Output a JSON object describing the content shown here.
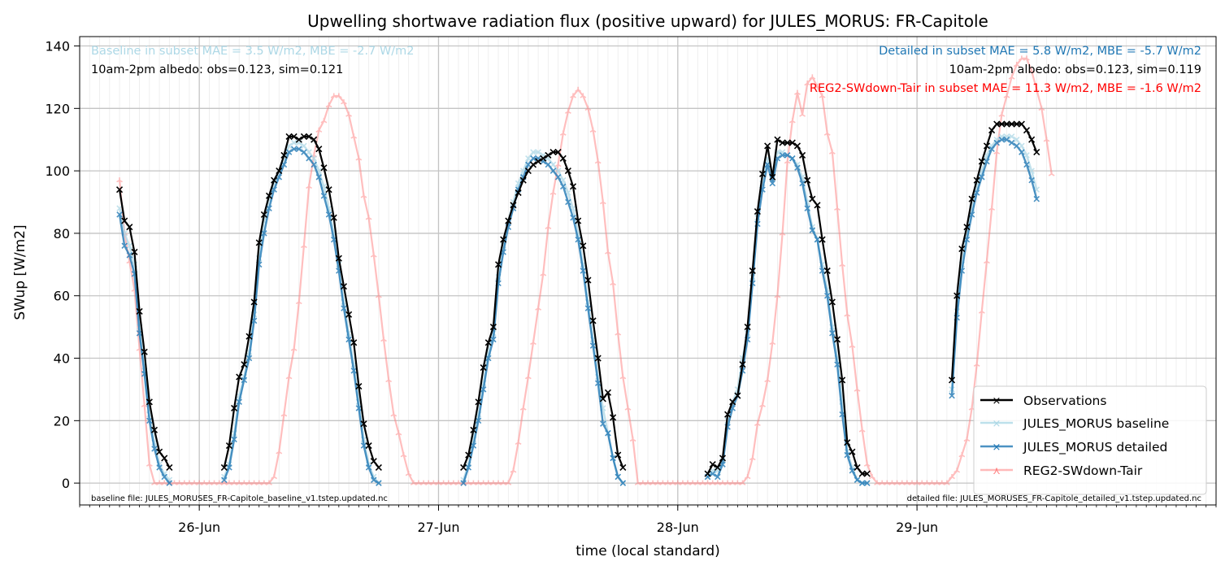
{
  "chart_data": {
    "type": "line",
    "title": "Upwelling shortwave radiation flux (positive upward) for JULES_MORUS: FR-Capitole",
    "xlabel": "time (local standard)",
    "ylabel": "SWup [W/m2]",
    "x_unit": "hours",
    "xlim": [
      -12,
      102
    ],
    "ylim": [
      -7,
      143
    ],
    "yticks": [
      0,
      20,
      40,
      60,
      80,
      100,
      120,
      140
    ],
    "xticks": [
      {
        "t": 0,
        "label": "26-Jun"
      },
      {
        "t": 24,
        "label": "27-Jun"
      },
      {
        "t": 48,
        "label": "28-Jun"
      },
      {
        "t": 72,
        "label": "29-Jun"
      }
    ],
    "grid": true,
    "legend_position": "lower right",
    "annotations": {
      "baseline_stats": "Baseline in subset MAE = 3.5 W/m2, MBE = -2.7 W/m2",
      "baseline_albedo": "10am-2pm albedo: obs=0.123, sim=0.121",
      "detailed_stats": "Detailed in subset MAE = 5.8 W/m2, MBE = -5.7 W/m2",
      "detailed_albedo": "10am-2pm albedo: obs=0.123, sim=0.119",
      "reg2_stats": "REG2-SWdown-Tair in subset MAE = 11.3 W/m2, MBE = -1.6 W/m2",
      "baseline_file": "baseline file: JULES_MORUSES_FR-Capitole_baseline_v1.tstep.updated.nc",
      "detailed_file": "detailed file: JULES_MORUSES_FR-Capitole_detailed_v1.tstep.updated.nc"
    },
    "colors": {
      "Observations": "#000000",
      "JULES_MORUS baseline": "#add8e6",
      "JULES_MORUS detailed": "#1f77b4",
      "REG2-SWdown-Tair": "#ff7f7f",
      "baseline_text": "#add8e6",
      "detailed_text": "#1f77b4",
      "reg2_text": "#ff0000"
    },
    "series": [
      {
        "name": "Observations",
        "segments": [
          {
            "t0": -8.0,
            "dt": 0.5,
            "values": [
              94,
              84,
              82,
              74,
              55,
              42,
              26,
              17,
              10,
              8,
              5
            ]
          },
          {
            "t0": 2.5,
            "dt": 0.5,
            "values": [
              5,
              12,
              24,
              34,
              38,
              47,
              58,
              77,
              86,
              92,
              97,
              100,
              105,
              111,
              111,
              110,
              111,
              111,
              110,
              107,
              101,
              94,
              85,
              72,
              63,
              54,
              45,
              31,
              19,
              12,
              7,
              5
            ]
          },
          {
            "t0": 26.5,
            "dt": 0.5,
            "values": [
              5,
              9,
              17,
              26,
              37,
              45,
              50,
              70,
              78,
              84,
              89,
              93,
              97,
              100,
              102,
              103,
              104,
              105,
              106,
              106,
              104,
              100,
              95,
              84,
              76,
              65,
              52,
              40,
              27,
              29,
              21,
              9,
              5
            ]
          },
          {
            "t0": 51.0,
            "dt": 0.5,
            "values": [
              3,
              6,
              5,
              8,
              22,
              26,
              28,
              38,
              50,
              68,
              87,
              99,
              108,
              98,
              110,
              109,
              109,
              109,
              108,
              105,
              97,
              91,
              89,
              78,
              68,
              58,
              46,
              33,
              13,
              10,
              5,
              3,
              3
            ]
          },
          {
            "t0": 75.5,
            "dt": 0.5,
            "values": [
              33,
              60,
              75,
              82,
              91,
              97,
              103,
              108,
              113,
              115,
              115,
              115,
              115,
              115,
              115,
              113,
              110,
              106
            ]
          }
        ]
      },
      {
        "name": "JULES_MORUS baseline",
        "segments": [
          {
            "t0": -8.0,
            "dt": 0.5,
            "values": [
              88,
              80,
              76,
              70,
              50,
              36,
              22,
              13,
              6,
              3,
              1
            ]
          },
          {
            "t0": 2.5,
            "dt": 0.5,
            "values": [
              2,
              6,
              16,
              28,
              34,
              42,
              54,
              72,
              84,
              91,
              96,
              100,
              104,
              108,
              109,
              109,
              108,
              106,
              104,
              100,
              95,
              88,
              80,
              70,
              58,
              48,
              38,
              26,
              14,
              6,
              2,
              0
            ]
          },
          {
            "t0": 26.5,
            "dt": 0.5,
            "values": [
              1,
              6,
              14,
              22,
              32,
              42,
              48,
              66,
              76,
              84,
              90,
              96,
              100,
              104,
              106,
              106,
              105,
              104,
              102,
              100,
              97,
              93,
              88,
              80,
              70,
              58,
              46,
              34,
              24,
              16,
              8,
              2,
              0
            ]
          },
          {
            "t0": 51.0,
            "dt": 0.5,
            "values": [
              2,
              4,
              4,
              7,
              20,
              26,
              30,
              40,
              48,
              66,
              85,
              96,
              104,
              98,
              106,
              106,
              105,
              104,
              102,
              98,
              90,
              82,
              78,
              70,
              62,
              50,
              40,
              26,
              10,
              5,
              1,
              0,
              0
            ]
          },
          {
            "t0": 75.5,
            "dt": 0.5,
            "values": [
              30,
              55,
              70,
              80,
              88,
              95,
              100,
              105,
              108,
              110,
              111,
              111,
              111,
              110,
              108,
              105,
              100,
              94
            ]
          }
        ]
      },
      {
        "name": "JULES_MORUS detailed",
        "segments": [
          {
            "t0": -8.0,
            "dt": 0.5,
            "values": [
              86,
              76,
              73,
              67,
              48,
              35,
              20,
              11,
              5,
              2,
              0
            ]
          },
          {
            "t0": 2.5,
            "dt": 0.5,
            "values": [
              1,
              5,
              14,
              26,
              33,
              40,
              52,
              70,
              80,
              88,
              94,
              98,
              102,
              106,
              107,
              107,
              106,
              104,
              102,
              98,
              92,
              86,
              78,
              68,
              56,
              46,
              36,
              24,
              12,
              5,
              1,
              0
            ]
          },
          {
            "t0": 26.5,
            "dt": 0.5,
            "values": [
              0,
              5,
              12,
              20,
              30,
              40,
              46,
              64,
              74,
              82,
              88,
              94,
              98,
              102,
              104,
              104,
              103,
              102,
              100,
              98,
              95,
              90,
              85,
              78,
              68,
              56,
              44,
              32,
              19,
              16,
              8,
              2,
              0
            ]
          },
          {
            "t0": 51.0,
            "dt": 0.5,
            "values": [
              2,
              3,
              2,
              6,
              18,
              24,
              28,
              36,
              46,
              64,
              83,
              94,
              102,
              96,
              104,
              105,
              105,
              104,
              101,
              96,
              88,
              81,
              78,
              68,
              60,
              48,
              38,
              22,
              9,
              4,
              1,
              0,
              0
            ]
          },
          {
            "t0": 75.5,
            "dt": 0.5,
            "values": [
              28,
              53,
              68,
              78,
              86,
              93,
              98,
              103,
              107,
              109,
              110,
              110,
              109,
              108,
              106,
              102,
              97,
              91
            ]
          }
        ]
      },
      {
        "name": "REG2-SWdown-Tair",
        "segments": [
          {
            "t0": -8.0,
            "dt": 0.5,
            "values": [
              97,
              80,
              71,
              62,
              43,
              25,
              6,
              0,
              0,
              0,
              0,
              0,
              0,
              0,
              0,
              0,
              0,
              0,
              0,
              0,
              0,
              0,
              0,
              0,
              0,
              0,
              0,
              0,
              0,
              0,
              0,
              2,
              10,
              22,
              34,
              43,
              58,
              76,
              95,
              105,
              113,
              116,
              121,
              124,
              124,
              122,
              118,
              111,
              104,
              92,
              85,
              73,
              60,
              46,
              33,
              22,
              16,
              9,
              3,
              0,
              0,
              0,
              0,
              0,
              0,
              0,
              0,
              0,
              0,
              0,
              0,
              0,
              0,
              0,
              0,
              0,
              0,
              0,
              0,
              4,
              13,
              24,
              34,
              45,
              56,
              67,
              82,
              93,
              102,
              112,
              119,
              124,
              126,
              124,
              120,
              113,
              103,
              90,
              74,
              64,
              48,
              34,
              24,
              14,
              0,
              0,
              0,
              0,
              0,
              0,
              0,
              0,
              0,
              0,
              0,
              0,
              0,
              0,
              0,
              0,
              0,
              0,
              0,
              0,
              0,
              0,
              2,
              8,
              19,
              25,
              33,
              45,
              60,
              80,
              103,
              116,
              125,
              118,
              128,
              130,
              127,
              124,
              112,
              106,
              88,
              70,
              54,
              44,
              30,
              17,
              6,
              2,
              0,
              0,
              0,
              0,
              0,
              0,
              0,
              0,
              0,
              0,
              0,
              0,
              0,
              0,
              0,
              2,
              4,
              9,
              14,
              24,
              38,
              55,
              71,
              88,
              106,
              118,
              124,
              130,
              134,
              136,
              136,
              132,
              126,
              120,
              110,
              99
            ]
          }
        ]
      }
    ]
  }
}
